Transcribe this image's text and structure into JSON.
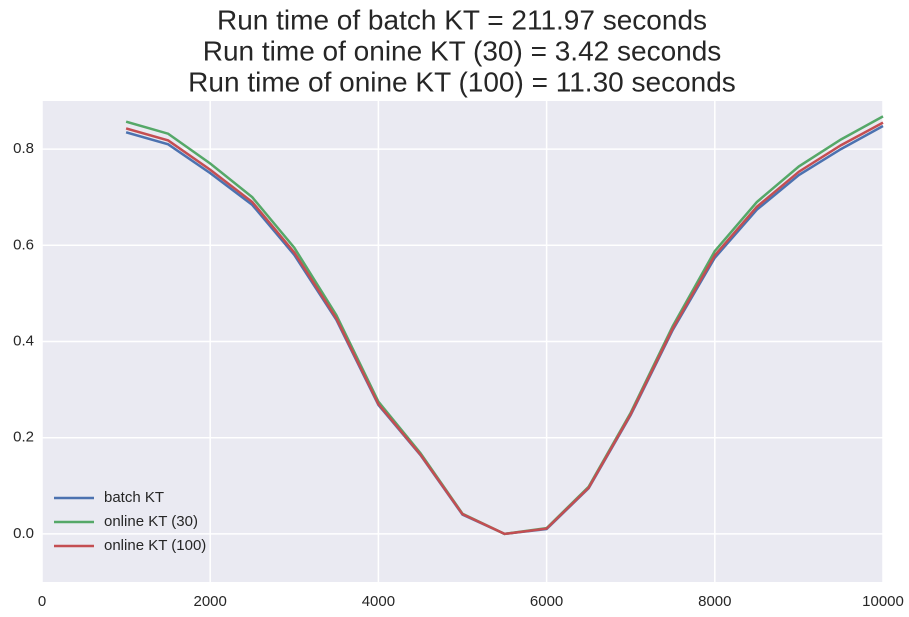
{
  "chart_data": {
    "type": "line",
    "title": [
      "Run time of batch KT = 211.97 seconds",
      "Run time of onine KT (30) = 3.42 seconds",
      "Run time of onine KT (100) = 11.30 seconds"
    ],
    "x": [
      1000,
      1500,
      2000,
      2500,
      3000,
      3500,
      4000,
      4500,
      5000,
      5500,
      6000,
      6500,
      7000,
      7500,
      8000,
      8500,
      9000,
      9500,
      10000
    ],
    "series": [
      {
        "name": "batch KT",
        "color": "#4c72b0",
        "values": [
          0.835,
          0.81,
          0.75,
          0.684,
          0.58,
          0.445,
          0.268,
          0.164,
          0.04,
          0.0,
          0.01,
          0.095,
          0.247,
          0.424,
          0.574,
          0.674,
          0.746,
          0.8,
          0.848
        ]
      },
      {
        "name": "online KT (30)",
        "color": "#55a868",
        "values": [
          0.857,
          0.832,
          0.77,
          0.7,
          0.595,
          0.455,
          0.275,
          0.168,
          0.042,
          0.0,
          0.012,
          0.098,
          0.252,
          0.432,
          0.588,
          0.69,
          0.764,
          0.82,
          0.868
        ]
      },
      {
        "name": "online KT (100)",
        "color": "#c44e52",
        "values": [
          0.843,
          0.818,
          0.757,
          0.69,
          0.585,
          0.448,
          0.27,
          0.165,
          0.041,
          0.0,
          0.011,
          0.096,
          0.249,
          0.427,
          0.579,
          0.68,
          0.753,
          0.808,
          0.855
        ]
      }
    ],
    "xlim": [
      0,
      10000
    ],
    "xticks": [
      0,
      2000,
      4000,
      6000,
      8000,
      10000
    ],
    "ylim": [
      -0.1,
      0.9
    ],
    "yticks": [
      {
        "value": 0,
        "label": "0.0"
      },
      0.2,
      0.4,
      0.6,
      0.8
    ],
    "grid": true,
    "legend": "lower left"
  }
}
